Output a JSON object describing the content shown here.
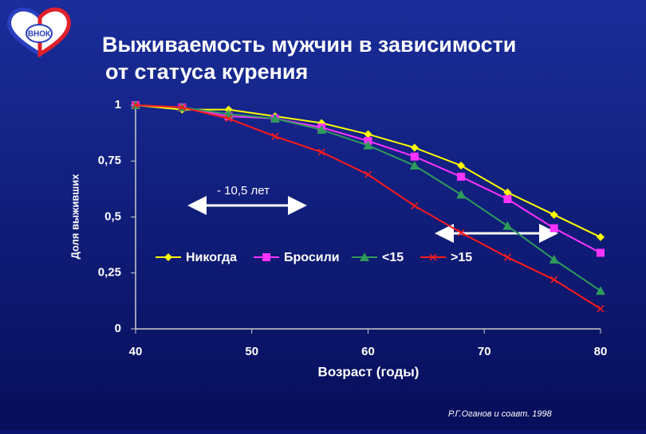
{
  "logo": "ВНОК",
  "chart_data": {
    "type": "line",
    "title": [
      "Выживаемость мужчин в зависимости",
      "от статуса курения"
    ],
    "x_label": "Возраст (годы)",
    "y_label": "Доля выживших",
    "x": [
      40,
      44,
      48,
      52,
      56,
      60,
      64,
      68,
      72,
      76,
      80
    ],
    "xlim": [
      40,
      80
    ],
    "xticks": [
      40,
      50,
      60,
      70,
      80
    ],
    "ylim": [
      0,
      1
    ],
    "yticks": [
      {
        "value": 0,
        "label": "0"
      },
      {
        "value": 0.25,
        "label": "0,25"
      },
      {
        "value": 0.5,
        "label": "0,5"
      },
      {
        "value": 0.75,
        "label": "0,75"
      },
      {
        "value": 1,
        "label": "1"
      }
    ],
    "series": [
      {
        "name": "Никогда",
        "color": "#ffff00",
        "marker": "diamond",
        "values": [
          1.0,
          0.98,
          0.98,
          0.95,
          0.92,
          0.87,
          0.81,
          0.73,
          0.61,
          0.51,
          0.41
        ]
      },
      {
        "name": "Бросили",
        "color": "#ff33ff",
        "marker": "square",
        "values": [
          1.0,
          0.99,
          0.95,
          0.94,
          0.9,
          0.84,
          0.77,
          0.68,
          0.58,
          0.45,
          0.34
        ]
      },
      {
        "name": "<15",
        "color": "#2e9b5a",
        "marker": "triangle",
        "values": [
          1.0,
          0.99,
          0.96,
          0.94,
          0.89,
          0.82,
          0.73,
          0.6,
          0.46,
          0.31,
          0.17
        ]
      },
      {
        "name": ">15",
        "color": "#ff1a1a",
        "marker": "cross",
        "values": [
          1.0,
          0.99,
          0.94,
          0.86,
          0.79,
          0.69,
          0.55,
          0.43,
          0.32,
          0.22,
          0.09
        ]
      }
    ],
    "annotation": "- 10,5 лет",
    "source": "Р.Г.Оганов и соавт. 1998"
  }
}
